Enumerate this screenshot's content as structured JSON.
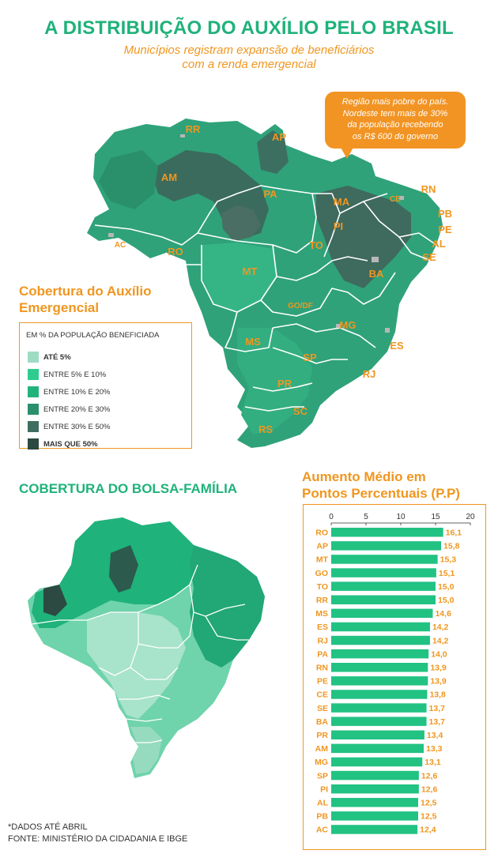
{
  "header": {
    "title": "A DISTRIBUIÇÃO DO AUXÍLIO PELO BRASIL",
    "subtitle_line1": "Municípios registram expansão de beneficiários",
    "subtitle_line2": "com a renda emergencial"
  },
  "callout": {
    "line1": "Região mais pobre do país.",
    "line2": "Nordeste tem mais de 30%",
    "line3": "da população recebendo",
    "line4": "os R$ 600 do governo"
  },
  "map_auxilio": {
    "state_labels": [
      "RR",
      "AP",
      "AM",
      "PA",
      "MA",
      "CE",
      "RN",
      "PB",
      "PE",
      "AL",
      "SE",
      "PI",
      "AC",
      "RO",
      "TO",
      "MT",
      "BA",
      "GO/DF",
      "MG",
      "ES",
      "MS",
      "SP",
      "RJ",
      "PR",
      "SC",
      "RS"
    ]
  },
  "legend": {
    "title_line1": "Cobertura do Auxílio",
    "title_line2": "Emergencial",
    "header": "EM % DA POPULAÇÃO BENEFICIADA",
    "items": [
      {
        "label": "ATÉ 5%",
        "color": "#9ddcc3",
        "bold": true
      },
      {
        "label": "ENTRE 5% E 10%",
        "color": "#2ecc8e",
        "bold": false
      },
      {
        "label": "ENTRE 10% E 20%",
        "color": "#22b37c",
        "bold": false
      },
      {
        "label": "ENTRE 20% E 30%",
        "color": "#2a8f6b",
        "bold": false
      },
      {
        "label": "ENTRE 30% E 50%",
        "color": "#3f6e60",
        "bold": false
      },
      {
        "label": "MAIS QUE 50%",
        "color": "#2c4a41",
        "bold": true
      }
    ]
  },
  "bolsa_familia": {
    "title": "COBERTURA DO BOLSA-FAMÍLIA"
  },
  "colors": {
    "accent_green": "#1fb27b",
    "accent_orange": "#f0961f",
    "bar_green": "#22c283"
  },
  "chart_data": {
    "type": "bar",
    "orientation": "horizontal",
    "title": "Aumento Médio em Pontos Percentuais (P.P)",
    "categories": [
      "RO",
      "AP",
      "MT",
      "GO",
      "TO",
      "RR",
      "MS",
      "ES",
      "RJ",
      "PA",
      "RN",
      "PE",
      "CE",
      "SE",
      "BA",
      "PR",
      "AM",
      "MG",
      "SP",
      "PI",
      "AL",
      "PB",
      "AC"
    ],
    "values": [
      16.1,
      15.8,
      15.3,
      15.1,
      15.0,
      15.0,
      14.6,
      14.2,
      14.2,
      14.0,
      13.9,
      13.9,
      13.8,
      13.7,
      13.7,
      13.4,
      13.3,
      13.1,
      12.6,
      12.6,
      12.5,
      12.5,
      12.4
    ],
    "value_labels": [
      "16,1",
      "15,8",
      "15,3",
      "15,1",
      "15,0",
      "15,0",
      "14,6",
      "14,2",
      "14,2",
      "14,0",
      "13,9",
      "13,9",
      "13,8",
      "13,7",
      "13,7",
      "13,4",
      "13,3",
      "13,1",
      "12,6",
      "12,6",
      "12,5",
      "12,5",
      "12,4"
    ],
    "xlim": [
      0,
      20
    ],
    "xticks": [
      "0",
      "5",
      "10",
      "15",
      "20"
    ],
    "grid": false
  },
  "footer": {
    "note": "*DADOS ATÉ ABRIL",
    "source": "FONTE: MINISTÉRIO DA CIDADANIA E IBGE"
  }
}
